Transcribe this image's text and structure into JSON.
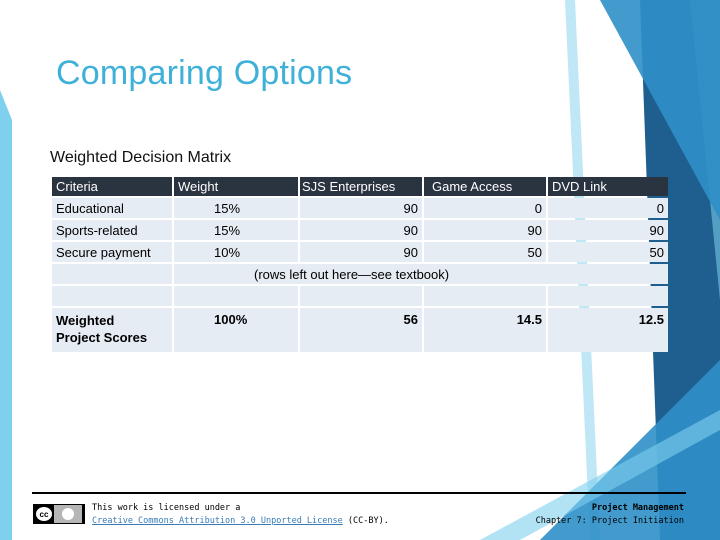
{
  "slide": {
    "title": "Comparing Options",
    "subtitle": "Weighted Decision Matrix"
  },
  "matrix": {
    "headers": [
      "Criteria",
      "Weight",
      "SJS Enterprises",
      "Game Access",
      "DVD Link"
    ],
    "rows": [
      {
        "criteria": "Educational",
        "weight": "15%",
        "sjs": "90",
        "game": "0",
        "dvd": "0"
      },
      {
        "criteria": "Sports-related",
        "weight": "15%",
        "sjs": "90",
        "game": "90",
        "dvd": "90"
      },
      {
        "criteria": "Secure payment",
        "weight": "10%",
        "sjs": "90",
        "game": "50",
        "dvd": "50"
      }
    ],
    "note": "(rows left out here—see textbook)",
    "score": {
      "label": "Weighted Project Scores",
      "weight": "100%",
      "sjs": "56",
      "game": "14.5",
      "dvd": "12.5"
    }
  },
  "footer": {
    "license_text": "This work is licensed under a",
    "license_link": "Creative Commons Attribution 3.0 Unported License",
    "license_suffix": "(CC-BY).",
    "course_title": "Project Management",
    "course_chapter": "Chapter 7: Project Initiation"
  },
  "colors": {
    "accent": "#3fb1d9",
    "header_bg": "#2a3340",
    "cell_bg": "#e6ecf4",
    "decor_dark": "#1f5f8f",
    "decor_mid": "#2f8fc8",
    "decor_light": "#7fd0ee"
  }
}
